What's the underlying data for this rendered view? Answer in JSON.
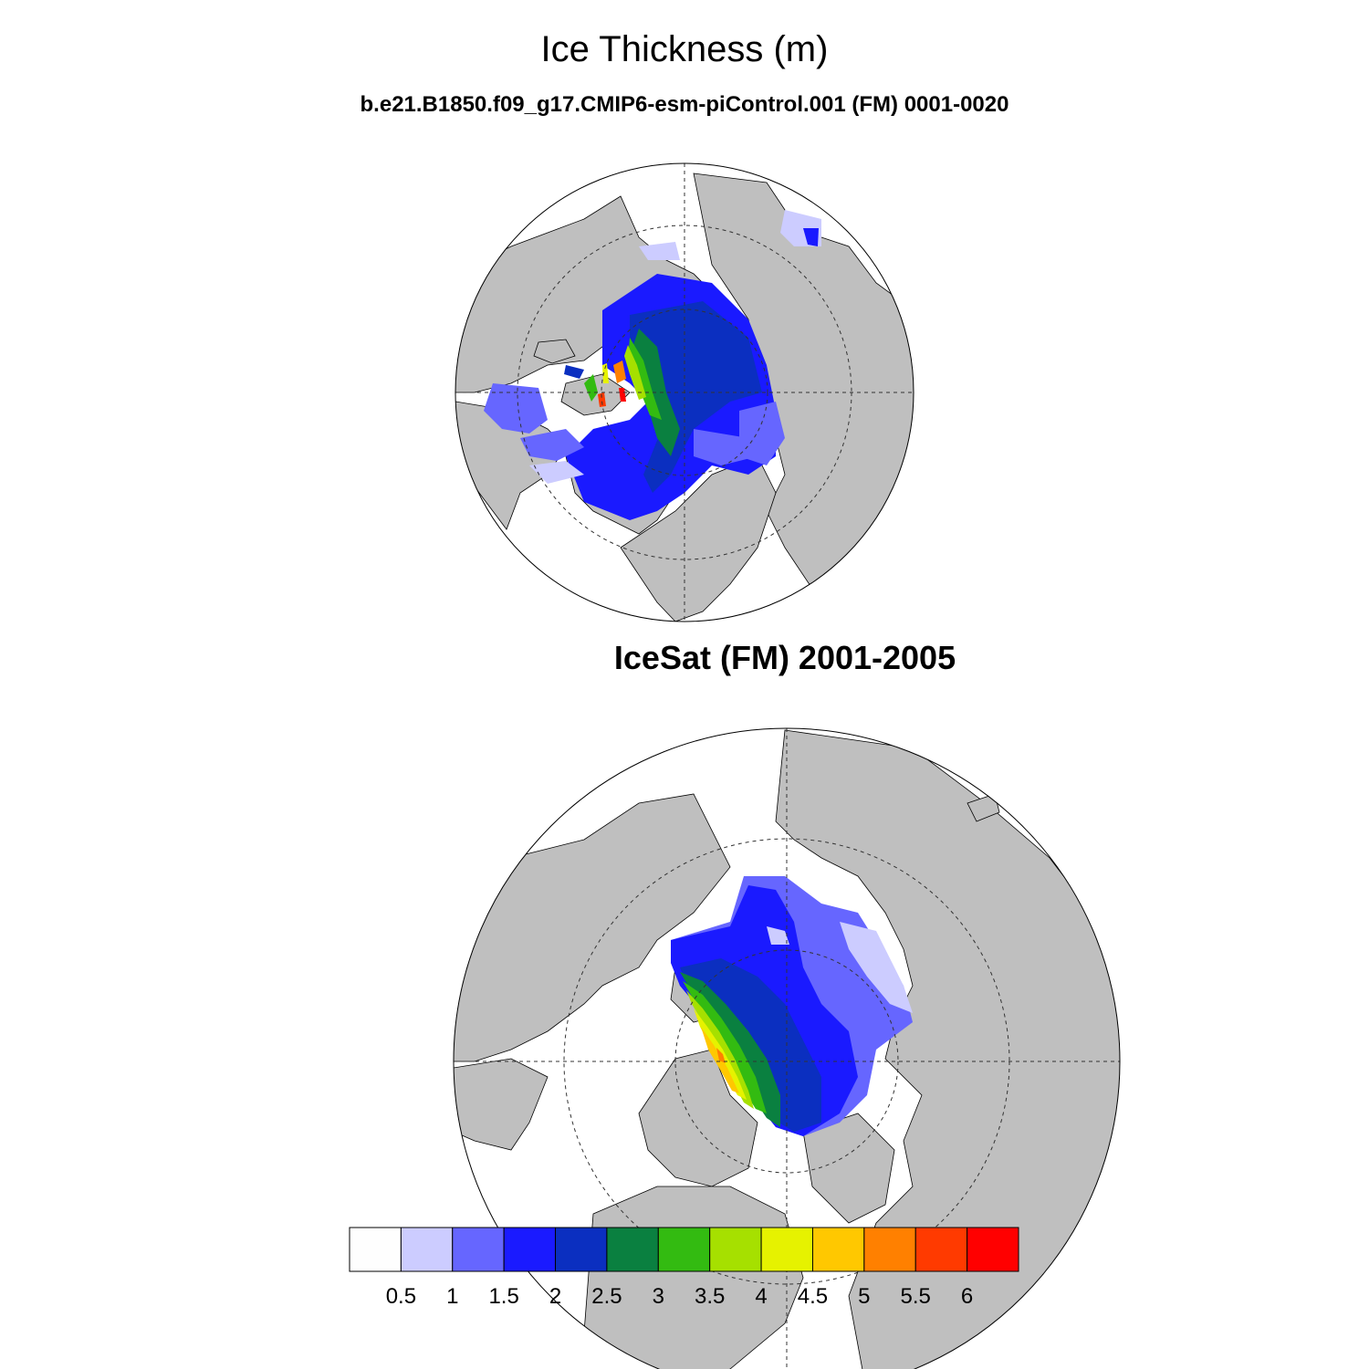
{
  "figure": {
    "title": "Ice Thickness (m)",
    "subtitle": "b.e21.B1850.f09_g17.CMIP6-esm-piControl.001 (FM) 0001-0020",
    "panel2_title": "IceSat (FM) 2001-2005"
  },
  "colorbar": {
    "labels": [
      "0.5",
      "1",
      "1.5",
      "2",
      "2.5",
      "3",
      "3.5",
      "4",
      "4.5",
      "5",
      "5.5",
      "6"
    ],
    "colors": [
      "#fefefe",
      "#ccccff",
      "#6666ff",
      "#1a1aff",
      "#0b2fc0",
      "#0a8040",
      "#33bb11",
      "#a6e000",
      "#e6f200",
      "#ffc800",
      "#ff8000",
      "#ff3a00",
      "#ff0000"
    ]
  },
  "map_colors": {
    "land": "#bfbfbf",
    "ocean": "#ffffff",
    "outline": "#000000"
  }
}
